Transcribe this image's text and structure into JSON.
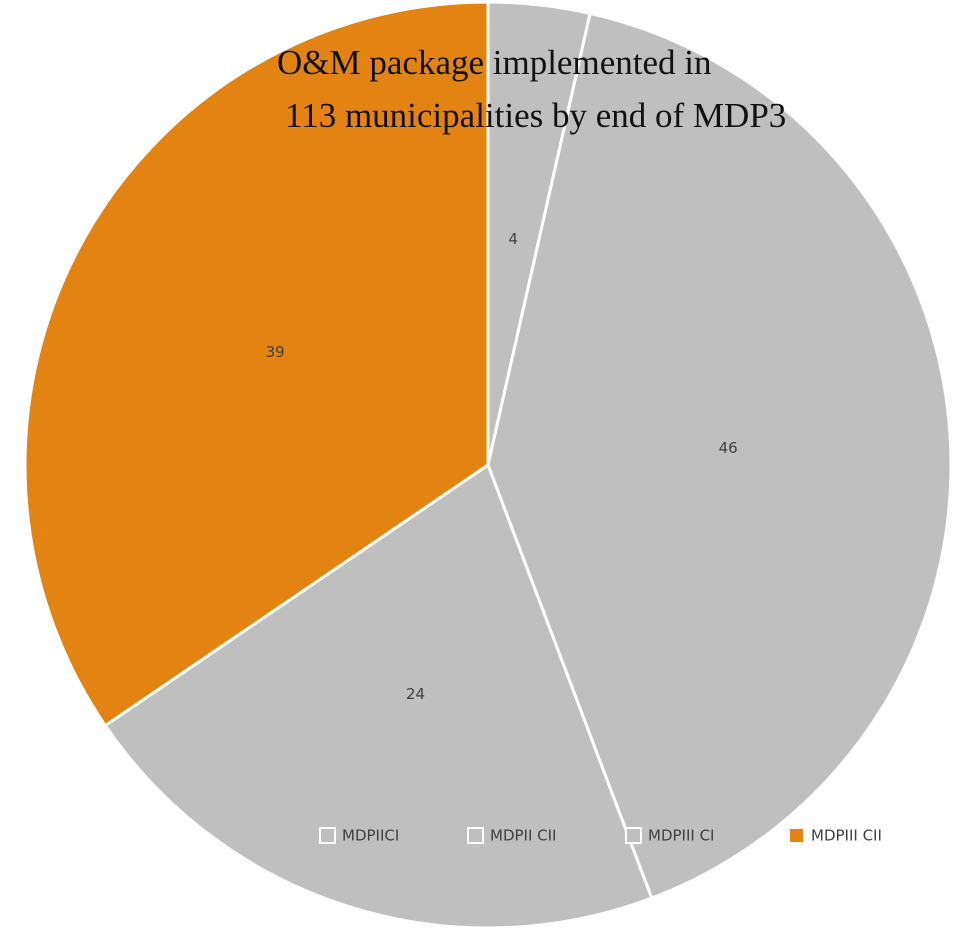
{
  "chart_data": {
    "type": "pie",
    "title_lines": [
      "O&M package implemented in",
      "113 municipalities by end of MDP3"
    ],
    "categories": [
      "MDPIICI",
      "MDPII CII",
      "MDPIII CI",
      "MDPIII CII"
    ],
    "values": [
      4,
      46,
      24,
      39
    ],
    "colors": [
      "#bfbfbf",
      "#bfbfbf",
      "#bfbfbf",
      "#e38312"
    ],
    "start_angle_deg": 0,
    "direction": "clockwise",
    "data_labels": [
      "4",
      "46",
      "24",
      "39"
    ],
    "legend_position": "bottom"
  }
}
